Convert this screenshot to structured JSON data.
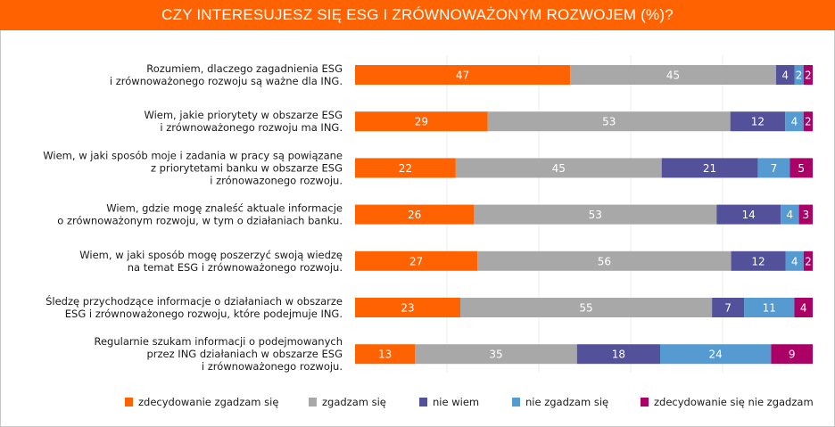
{
  "chart_data": {
    "type": "bar",
    "orientation": "horizontal",
    "stacked": true,
    "title": "CZY INTERESUJESZ SIĘ ESG I ZRÓWNOWAŻONYM ROZWOJEM (%)?",
    "categories": [
      [
        "Rozumiem, dlaczego zagadnienia ESG",
        "i zrównoważonego rozwoju są ważne dla ING."
      ],
      [
        "Wiem, jakie priorytety w obszarze ESG",
        "i zrównoważonego rozwoju ma ING."
      ],
      [
        "Wiem, w jaki sposób moje i zadania w pracy są powiązane",
        "z priorytetami banku w obszarze ESG",
        "i zrónowazonego rozwoju."
      ],
      [
        "Wiem, gdzie mogę znaleść aktuale informacje",
        "o zrównoważonym rozwoju, w tym o działaniach banku."
      ],
      [
        "Wiem, w jaki sposób mogę poszerzyć swoją wiedzę",
        "na temat ESG i zrównoważonego rozwoju."
      ],
      [
        "Śledzę przychodzące informacje o działaniach w obszarze",
        "ESG i zrównoważonego rozwoju, które podejmuje ING."
      ],
      [
        "Regularnie szukam informacji o podejmowanych",
        "przez ING działaniach w obszarze ESG",
        "i zrównoważonego rozwoju."
      ]
    ],
    "series": [
      {
        "name": "zdecydowanie zgadzam się",
        "color": "#FF6200",
        "values": [
          47,
          29,
          22,
          26,
          27,
          23,
          13
        ]
      },
      {
        "name": "zgadzam się",
        "color": "#A8A8A8",
        "values": [
          45,
          53,
          45,
          53,
          56,
          55,
          35
        ]
      },
      {
        "name": "nie wiem",
        "color": "#525199",
        "values": [
          4,
          12,
          21,
          14,
          12,
          7,
          18
        ]
      },
      {
        "name": "nie zgadzam się",
        "color": "#559BD1",
        "values": [
          2,
          4,
          7,
          4,
          4,
          11,
          24
        ]
      },
      {
        "name": "zdecydowanie się nie zgadzam",
        "color": "#AB0066",
        "values": [
          2,
          2,
          5,
          3,
          2,
          4,
          9
        ]
      }
    ],
    "xlim": [
      0,
      100
    ],
    "legend": "bottom",
    "grid": true
  }
}
